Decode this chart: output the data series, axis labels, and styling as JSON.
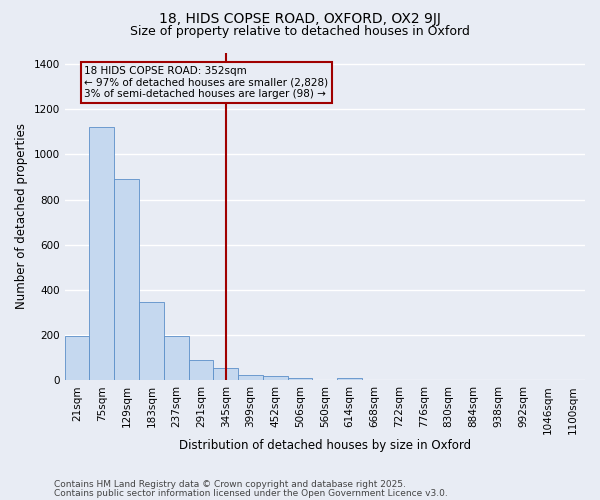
{
  "title1": "18, HIDS COPSE ROAD, OXFORD, OX2 9JJ",
  "title2": "Size of property relative to detached houses in Oxford",
  "xlabel": "Distribution of detached houses by size in Oxford",
  "ylabel": "Number of detached properties",
  "bar_color": "#c5d8ef",
  "bar_edge_color": "#5b8fc9",
  "background_color": "#e8ecf4",
  "grid_color": "#ffffff",
  "vline_color": "#a00000",
  "vline_x": 6,
  "categories": [
    "21sqm",
    "75sqm",
    "129sqm",
    "183sqm",
    "237sqm",
    "291sqm",
    "345sqm",
    "399sqm",
    "452sqm",
    "506sqm",
    "560sqm",
    "614sqm",
    "668sqm",
    "722sqm",
    "776sqm",
    "830sqm",
    "884sqm",
    "938sqm",
    "992sqm",
    "1046sqm",
    "1100sqm"
  ],
  "values": [
    195,
    1120,
    890,
    345,
    195,
    90,
    55,
    25,
    20,
    12,
    0,
    12,
    0,
    0,
    0,
    0,
    0,
    0,
    0,
    0,
    0
  ],
  "ylim": [
    0,
    1450
  ],
  "yticks": [
    0,
    200,
    400,
    600,
    800,
    1000,
    1200,
    1400
  ],
  "ann_line1": "18 HIDS COPSE ROAD: 352sqm",
  "ann_line2": "← 97% of detached houses are smaller (2,828)",
  "ann_line3": "3% of semi-detached houses are larger (98) →",
  "footnote1": "Contains HM Land Registry data © Crown copyright and database right 2025.",
  "footnote2": "Contains public sector information licensed under the Open Government Licence v3.0.",
  "title_fontsize": 10,
  "subtitle_fontsize": 9,
  "axis_label_fontsize": 8.5,
  "tick_fontsize": 7.5,
  "annotation_fontsize": 7.5,
  "footnote_fontsize": 6.5
}
